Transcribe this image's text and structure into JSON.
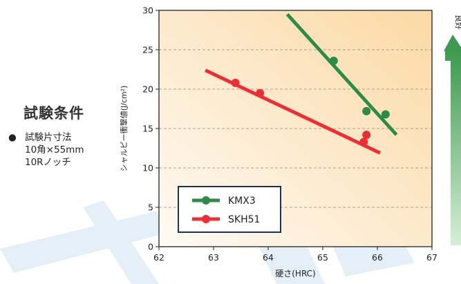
{
  "conditions": {
    "title": "試験条件",
    "bullet": "●",
    "items": [
      "試験片寸法",
      "10角×55mm",
      "10Rノッチ"
    ]
  },
  "chart_data": {
    "type": "scatter",
    "xlabel": "硬さ(HRC)",
    "ylabel": "シャルピー衝撃値(J/cm²)",
    "xlim": [
      62,
      67
    ],
    "ylim": [
      0,
      30
    ],
    "xticks": [
      62,
      63,
      64,
      65,
      66,
      67
    ],
    "yticks": [
      0,
      5,
      10,
      15,
      20,
      25,
      30
    ],
    "grid": "horizontal-dashed",
    "legend_position": "bottom-left",
    "arrow_label": "良好",
    "series": [
      {
        "name": "KMX3",
        "color": "#2e8b47",
        "points": [
          [
            65.2,
            23.6
          ],
          [
            65.8,
            17.2
          ],
          [
            66.15,
            16.8
          ]
        ],
        "trend": [
          [
            64.35,
            29.5
          ],
          [
            66.35,
            14.2
          ]
        ]
      },
      {
        "name": "SKH51",
        "color": "#ee2d35",
        "points": [
          [
            63.4,
            20.8
          ],
          [
            63.85,
            19.5
          ],
          [
            65.8,
            14.2
          ],
          [
            65.75,
            13.3
          ]
        ],
        "trend": [
          [
            62.85,
            22.4
          ],
          [
            66.05,
            11.9
          ]
        ]
      }
    ]
  }
}
